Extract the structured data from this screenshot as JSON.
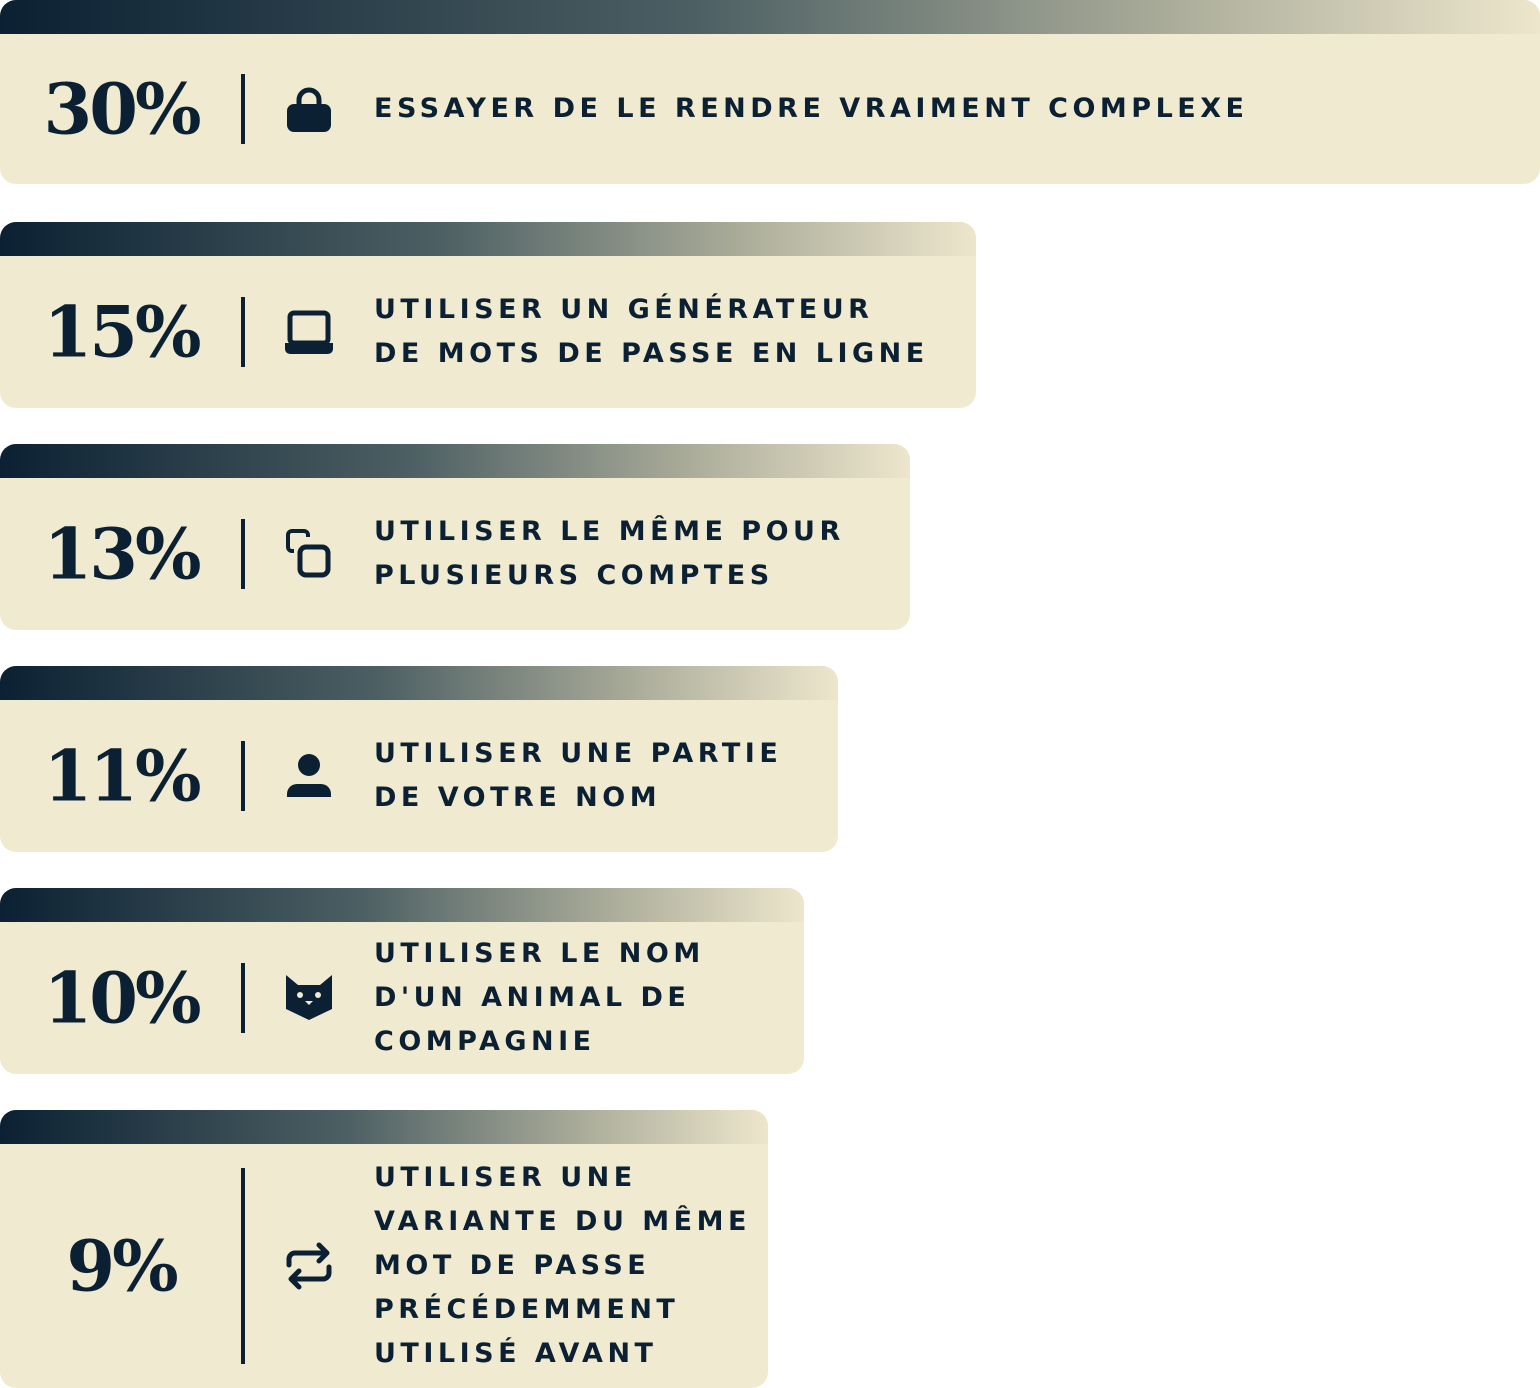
{
  "chart_data": {
    "type": "bar",
    "orientation": "horizontal",
    "categories": [
      [
        "ESSAYER DE LE RENDRE VRAIMENT COMPLEXE"
      ],
      [
        "UTILISER UN GÉNÉRATEUR",
        "DE MOTS DE PASSE EN LIGNE"
      ],
      [
        "UTILISER LE MÊME POUR",
        "PLUSIEURS COMPTES"
      ],
      [
        "UTILISER UNE PARTIE",
        "DE VOTRE NOM"
      ],
      [
        "UTILISER LE NOM",
        "D'UN ANIMAL DE",
        "COMPAGNIE"
      ],
      [
        "UTILISER UNE",
        "VARIANTE DU MÊME",
        "MOT DE PASSE",
        "PRÉCÉDEMMENT",
        "UTILISÉ AVANT"
      ]
    ],
    "values": [
      30,
      15,
      13,
      11,
      10,
      9
    ],
    "value_labels": [
      "30%",
      "15%",
      "13%",
      "11%",
      "10%",
      "9%"
    ],
    "icons": [
      "lock-icon",
      "laptop-icon",
      "copy-icon",
      "user-icon",
      "cat-icon",
      "repeat-icon"
    ]
  },
  "colors": {
    "text": "#0b2133",
    "bar": "#f0ead0",
    "gradient_start": "#0b2133",
    "gradient_end": "#ede6cc"
  }
}
